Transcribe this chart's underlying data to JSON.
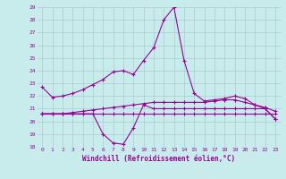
{
  "title": "",
  "xlabel": "Windchill (Refroidissement éolien,°C)",
  "bg_color": "#c8ecec",
  "line_color": "#990099",
  "grid_color": "#aacccc",
  "ylim": [
    18,
    29
  ],
  "xlim": [
    -0.5,
    23.5
  ],
  "yticks": [
    18,
    19,
    20,
    21,
    22,
    23,
    24,
    25,
    26,
    27,
    28,
    29
  ],
  "xticks": [
    0,
    1,
    2,
    3,
    4,
    5,
    6,
    7,
    8,
    9,
    10,
    11,
    12,
    13,
    14,
    15,
    16,
    17,
    18,
    19,
    20,
    21,
    22,
    23
  ],
  "series": [
    [
      22.7,
      21.9,
      22.0,
      22.2,
      22.5,
      22.9,
      23.3,
      23.9,
      24.0,
      23.7,
      24.8,
      25.8,
      28.0,
      29.0,
      24.8,
      22.2,
      21.6,
      21.7,
      21.8,
      22.0,
      21.8,
      21.3,
      21.1,
      20.8
    ],
    [
      20.6,
      20.6,
      20.6,
      20.6,
      20.6,
      20.6,
      19.0,
      18.3,
      18.2,
      19.5,
      21.3,
      21.0,
      21.0,
      21.0,
      21.0,
      21.0,
      21.0,
      21.0,
      21.0,
      21.0,
      21.0,
      21.0,
      21.0,
      20.2
    ],
    [
      20.6,
      20.6,
      20.6,
      20.6,
      20.6,
      20.6,
      20.6,
      20.6,
      20.6,
      20.6,
      20.6,
      20.6,
      20.6,
      20.6,
      20.6,
      20.6,
      20.6,
      20.6,
      20.6,
      20.6,
      20.6,
      20.6,
      20.6,
      20.6
    ],
    [
      20.6,
      20.6,
      20.6,
      20.7,
      20.8,
      20.9,
      21.0,
      21.1,
      21.2,
      21.3,
      21.4,
      21.5,
      21.5,
      21.5,
      21.5,
      21.5,
      21.5,
      21.6,
      21.7,
      21.7,
      21.5,
      21.3,
      21.0,
      20.2
    ]
  ]
}
